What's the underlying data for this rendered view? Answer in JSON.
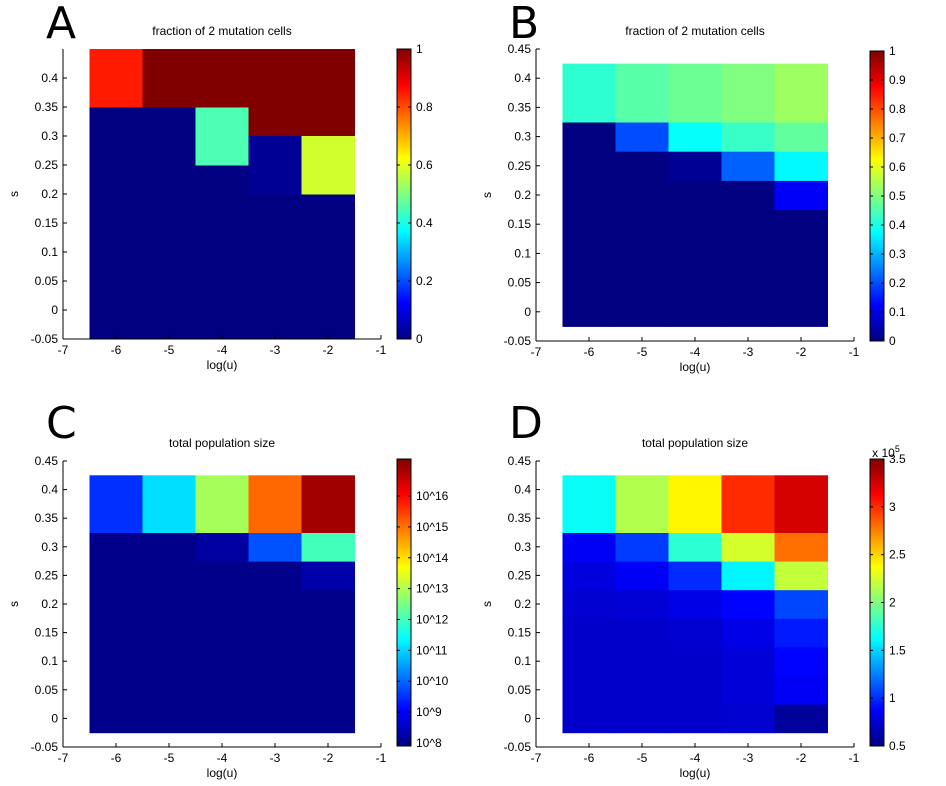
{
  "figure": {
    "panels": [
      "A",
      "B",
      "C",
      "D"
    ]
  },
  "chart_data": [
    {
      "type": "heatmap",
      "panel": "A",
      "title": "fraction of 2 mutation cells",
      "xlabel": "log(u)",
      "ylabel": "s",
      "xlim": [
        -7,
        -1
      ],
      "ylim": [
        -0.05,
        0.45
      ],
      "xticks": [
        -7,
        -6,
        -5,
        -4,
        -3,
        -2,
        -1
      ],
      "yticks": [
        -0.05,
        0,
        0.05,
        0.1,
        0.15,
        0.2,
        0.25,
        0.3,
        0.35,
        0.4
      ],
      "x": [
        -6,
        -5,
        -4,
        -3,
        -2
      ],
      "y": [
        0,
        0.1,
        0.2,
        0.3,
        0.4
      ],
      "cell_height": 0.1,
      "values": [
        [
          0,
          0,
          0,
          0,
          0
        ],
        [
          0,
          0,
          0,
          0,
          0
        ],
        [
          0,
          0,
          0,
          0,
          0
        ],
        [
          0,
          0,
          0.45,
          1,
          1
        ],
        [
          0.85,
          1,
          1,
          1,
          1
        ]
      ],
      "clim": [
        0,
        1
      ],
      "colorbar_ticks": [
        0,
        0.2,
        0.4,
        0.6,
        0.8,
        1
      ],
      "colorbar_labels": [
        "0",
        "0.2",
        "0.4",
        "0.6",
        "0.8",
        "1"
      ],
      "colorbar_exponent": null,
      "overlay": [
        {
          "x": -3,
          "y": 0.25,
          "value": 0.02
        },
        {
          "x": -2,
          "y": 0.25,
          "value": 0.58
        }
      ]
    },
    {
      "type": "heatmap",
      "panel": "B",
      "title": "fraction of 2 mutation cells",
      "xlabel": "log(u)",
      "ylabel": "s",
      "xlim": [
        -7,
        -1
      ],
      "ylim": [
        -0.05,
        0.45
      ],
      "xticks": [
        -7,
        -6,
        -5,
        -4,
        -3,
        -2,
        -1
      ],
      "yticks": [
        -0.05,
        0,
        0.05,
        0.1,
        0.15,
        0.2,
        0.25,
        0.3,
        0.35,
        0.4,
        0.45
      ],
      "x": [
        -6,
        -5,
        -4,
        -3,
        -2
      ],
      "y": [
        0,
        0.05,
        0.1,
        0.15,
        0.2,
        0.25,
        0.3,
        0.35,
        0.4
      ],
      "cell_height": 0.05,
      "values": [
        [
          0,
          0,
          0,
          0,
          0
        ],
        [
          0,
          0,
          0,
          0,
          0
        ],
        [
          0,
          0,
          0,
          0,
          0
        ],
        [
          0,
          0,
          0,
          0,
          0
        ],
        [
          0,
          0,
          0,
          0,
          0.12
        ],
        [
          0,
          0,
          0.02,
          0.22,
          0.37
        ],
        [
          0,
          0.2,
          0.38,
          0.43,
          0.47
        ],
        [
          0.42,
          0.46,
          0.48,
          0.5,
          0.53
        ],
        [
          0.42,
          0.46,
          0.48,
          0.5,
          0.53
        ]
      ],
      "clim": [
        0,
        1
      ],
      "colorbar_ticks": [
        0,
        0.1,
        0.2,
        0.3,
        0.4,
        0.5,
        0.6,
        0.7,
        0.8,
        0.9,
        1
      ],
      "colorbar_labels": [
        "0",
        "0.1",
        "0.2",
        "0.3",
        "0.4",
        "0.5",
        "0.6",
        "0.7",
        "0.8",
        "0.9",
        "1"
      ],
      "colorbar_exponent": null
    },
    {
      "type": "heatmap",
      "panel": "C",
      "title": "total population size",
      "xlabel": "log(u)",
      "ylabel": "s",
      "xlim": [
        -7,
        -1
      ],
      "ylim": [
        -0.05,
        0.45
      ],
      "xticks": [
        -7,
        -6,
        -5,
        -4,
        -3,
        -2,
        -1
      ],
      "yticks": [
        -0.05,
        0,
        0.05,
        0.1,
        0.15,
        0.2,
        0.25,
        0.3,
        0.35,
        0.4,
        0.45
      ],
      "x": [
        -6,
        -5,
        -4,
        -3,
        -2
      ],
      "y": [
        0,
        0.05,
        0.1,
        0.15,
        0.2,
        0.25,
        0.3,
        0.35,
        0.4
      ],
      "cell_height": 0.05,
      "values": [
        [
          8,
          8,
          8,
          8,
          8
        ],
        [
          8,
          8,
          8,
          8,
          8
        ],
        [
          8,
          8,
          8,
          8,
          8
        ],
        [
          8,
          8,
          8,
          8,
          8
        ],
        [
          8,
          8,
          8,
          8,
          8
        ],
        [
          8,
          8,
          8,
          8,
          8.3
        ],
        [
          8,
          8,
          8.2,
          9.8,
          12
        ],
        [
          9.5,
          11.1,
          12.9,
          15.1,
          16.9
        ],
        [
          9.5,
          11.1,
          12.9,
          15.1,
          16.9
        ]
      ],
      "clim": [
        7.9,
        17.2
      ],
      "colorbar_ticks": [
        8,
        9,
        10,
        11,
        12,
        13,
        14,
        15,
        16
      ],
      "colorbar_labels": [
        "10^8",
        "10^9",
        "10^10",
        "10^11",
        "10^12",
        "10^13",
        "10^14",
        "10^15",
        "10^16"
      ],
      "colorbar_exponent": null
    },
    {
      "type": "heatmap",
      "panel": "D",
      "title": "total population size",
      "xlabel": "log(u)",
      "ylabel": "s",
      "xlim": [
        -7,
        -1
      ],
      "ylim": [
        -0.05,
        0.45
      ],
      "xticks": [
        -7,
        -6,
        -5,
        -4,
        -3,
        -2,
        -1
      ],
      "yticks": [
        -0.05,
        0,
        0.05,
        0.1,
        0.15,
        0.2,
        0.25,
        0.3,
        0.35,
        0.4,
        0.45
      ],
      "x": [
        -6,
        -5,
        -4,
        -3,
        -2
      ],
      "y": [
        0,
        0.05,
        0.1,
        0.15,
        0.2,
        0.25,
        0.3,
        0.35,
        0.4
      ],
      "cell_height": 0.05,
      "values": [
        [
          0.72,
          0.72,
          0.72,
          0.74,
          0.58
        ],
        [
          0.72,
          0.72,
          0.72,
          0.76,
          0.85
        ],
        [
          0.72,
          0.72,
          0.72,
          0.76,
          0.88
        ],
        [
          0.72,
          0.72,
          0.74,
          0.8,
          0.95
        ],
        [
          0.74,
          0.75,
          0.8,
          0.88,
          1.08
        ],
        [
          0.78,
          0.85,
          1.0,
          1.6,
          2.2
        ],
        [
          0.85,
          1.05,
          1.75,
          2.25,
          2.8
        ],
        [
          1.65,
          2.15,
          2.4,
          3.0,
          3.25
        ],
        [
          1.65,
          2.15,
          2.4,
          3.0,
          3.25
        ]
      ],
      "clim": [
        0.5,
        3.5
      ],
      "colorbar_ticks": [
        0.5,
        1,
        1.5,
        2,
        2.5,
        3,
        3.5
      ],
      "colorbar_labels": [
        "0.5",
        "1",
        "1.5",
        "2",
        "2.5",
        "3",
        "3.5"
      ],
      "colorbar_exponent": {
        "base": "x 10",
        "power": "5"
      }
    }
  ]
}
